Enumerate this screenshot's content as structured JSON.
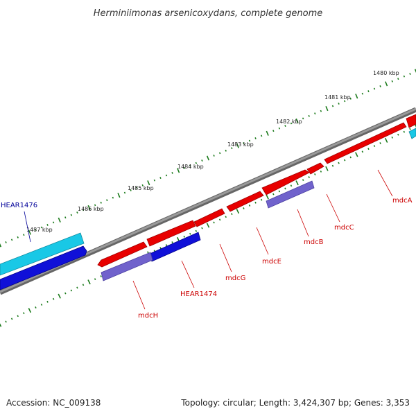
{
  "title": "Herminiimonas arsenicoxydans, complete genome",
  "footer": {
    "accession": "Accession: NC_009138",
    "summary": "Topology: circular; Length: 3,424,307 bp; Genes: 3,353"
  },
  "tick_labels": [
    "1480 kbp",
    "1481 kbp",
    "1482 kbp",
    "1483 kbp",
    "1484 kbp",
    "1485 kbp",
    "1486 kbp",
    "1487 kbp"
  ],
  "gene_labels": [
    {
      "name": "mdcA",
      "color": "#cc0000"
    },
    {
      "name": "mdcC",
      "color": "#cc0000"
    },
    {
      "name": "mdcB",
      "color": "#cc0000"
    },
    {
      "name": "mdcE",
      "color": "#cc0000"
    },
    {
      "name": "mdcG",
      "color": "#cc0000"
    },
    {
      "name": "HEAR1474",
      "color": "#cc0000"
    },
    {
      "name": "mdcH",
      "color": "#cc0000"
    },
    {
      "name": "HEAR1476",
      "color": "#000099"
    }
  ],
  "colors": {
    "forward_cds": "#e80000",
    "reverse_cds": "#1010d8",
    "forward_cyan": "#19c8e6",
    "reverse_purple": "#7062cc",
    "backbone": "#808080",
    "ticks": "#1a7a1a",
    "red_label": "#cc0000",
    "blue_label": "#000099"
  }
}
